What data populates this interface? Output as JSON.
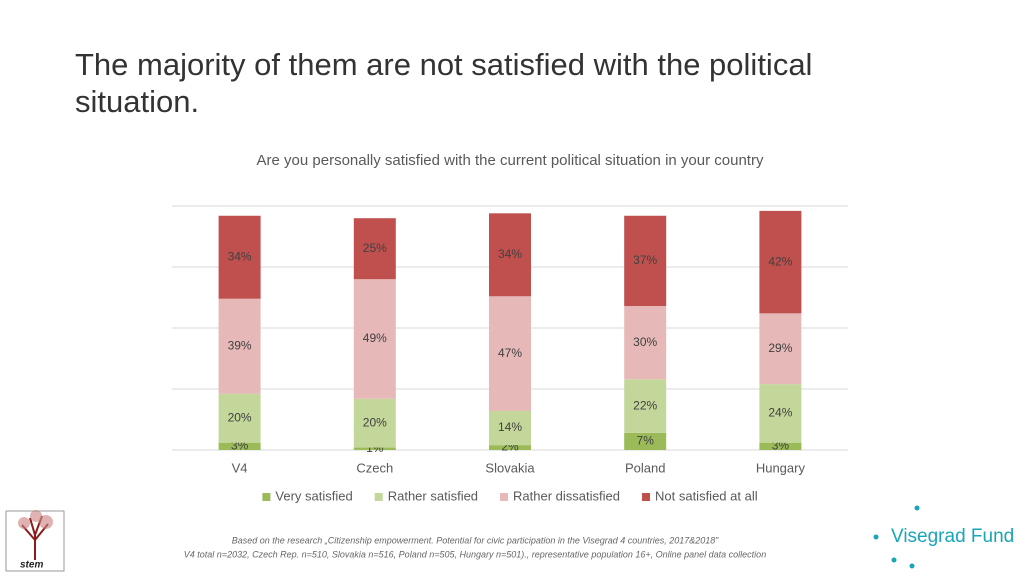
{
  "slide": {
    "title": "The majority of them are not satisfied with the political situation.",
    "footnote": [
      "Based on the research „Citizenship empowerment. Potential for civic participation in the Visegrad 4 countries, 2017&2018”",
      "V4 total n=2032, Czech Rep. n=510, Slovakia n=516, Poland n=505, Hungary n=501)., representative population 16+, Online panel data collection"
    ],
    "logo_left": "stem",
    "logo_right": "Visegrad Fund"
  },
  "chart_data": {
    "type": "stacked_bar",
    "title": "Are you personally satisfied with the current political situation in your country",
    "categories": [
      "V4",
      "Czech",
      "Slovakia",
      "Poland",
      "Hungary"
    ],
    "series": [
      {
        "name": "Very satisfied",
        "color": "#9bbb59",
        "values": [
          3,
          1,
          2,
          7,
          3
        ],
        "value_labels": [
          "3%",
          "1%",
          "2%",
          "7%",
          "3%"
        ]
      },
      {
        "name": "Rather satisfied",
        "color": "#c4d79b",
        "values": [
          20,
          20,
          14,
          22,
          24
        ],
        "value_labels": [
          "20%",
          "20%",
          "14%",
          "22%",
          "24%"
        ]
      },
      {
        "name": "Rather dissatisfied",
        "color": "#e6b9b8",
        "values": [
          39,
          49,
          47,
          30,
          29
        ],
        "value_labels": [
          "39%",
          "49%",
          "47%",
          "30%",
          "29%"
        ]
      },
      {
        "name": "Not satisfied at all",
        "color": "#c0504d",
        "values": [
          34,
          25,
          34,
          37,
          42
        ],
        "value_labels": [
          "34%",
          "25%",
          "34%",
          "37%",
          "42%"
        ]
      }
    ],
    "ylim": [
      0,
      100
    ],
    "yticks": [
      0,
      25,
      50,
      75,
      100
    ],
    "grid": true,
    "legend": "bottom"
  }
}
